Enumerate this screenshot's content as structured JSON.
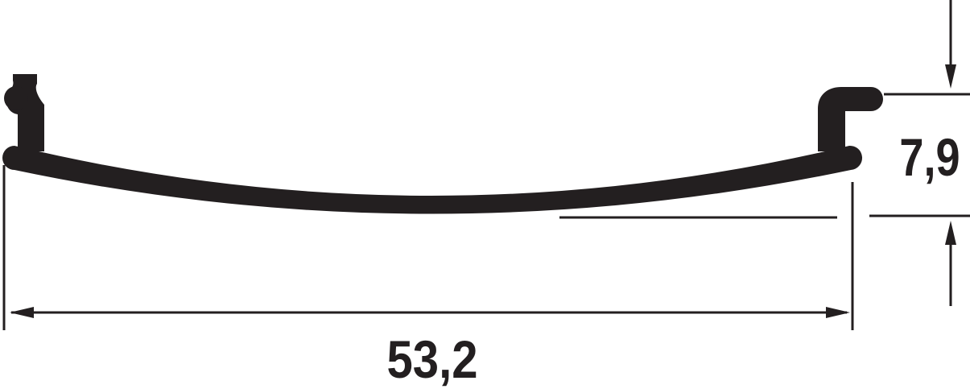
{
  "dimensions": {
    "width_label": "53,2",
    "height_label": "7,9"
  },
  "colors": {
    "profile": "#231f20",
    "line": "#231f20",
    "background": "#ffffff"
  }
}
